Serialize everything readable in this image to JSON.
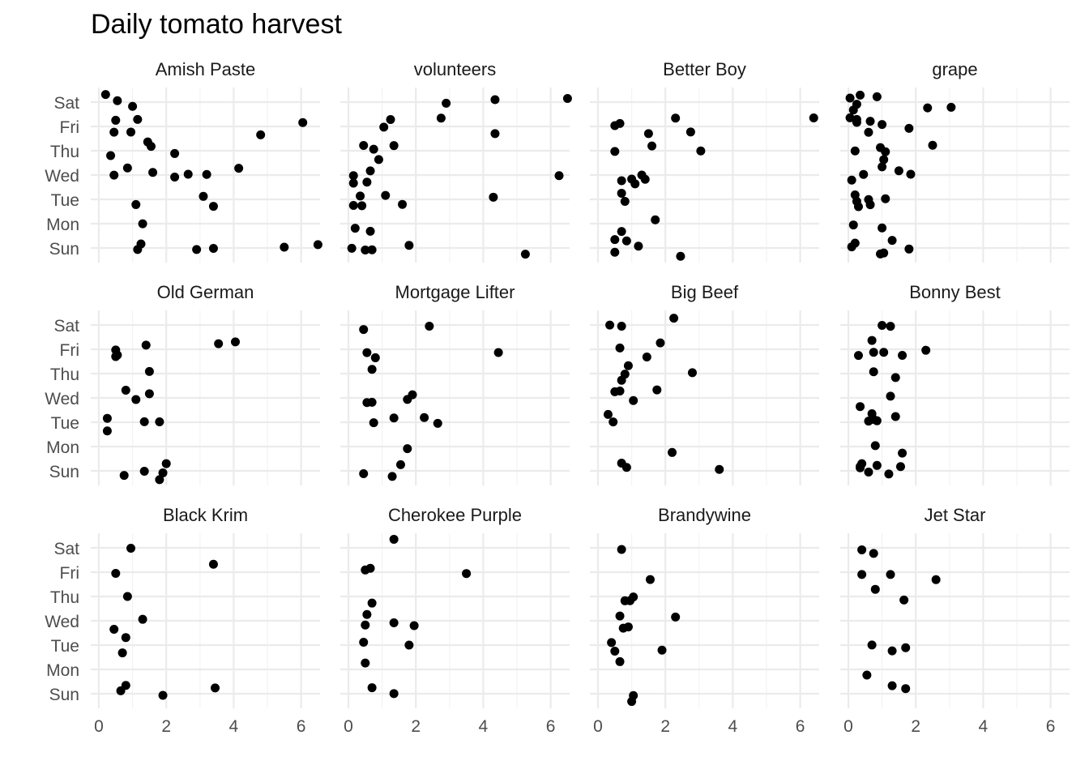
{
  "chart_data": {
    "type": "scatter",
    "title": "Daily tomato harvest",
    "xlabel": "",
    "ylabel": "",
    "xlim": [
      0,
      6.8
    ],
    "x_ticks": [
      0,
      2,
      4,
      6
    ],
    "y_categories": [
      "Sun",
      "Mon",
      "Tue",
      "Wed",
      "Thu",
      "Fri",
      "Sat"
    ],
    "grid": true,
    "point_color": "#000000",
    "grid_color": "#ebebeb",
    "facets": [
      {
        "name": "Amish Paste",
        "points": [
          {
            "x": 1.0,
            "y": "Sat"
          },
          {
            "x": 0.2,
            "y": "Sat"
          },
          {
            "x": 0.55,
            "y": "Sat"
          },
          {
            "x": 0.45,
            "y": "Fri"
          },
          {
            "x": 0.5,
            "y": "Fri"
          },
          {
            "x": 0.95,
            "y": "Fri"
          },
          {
            "x": 1.15,
            "y": "Fri"
          },
          {
            "x": 4.8,
            "y": "Fri"
          },
          {
            "x": 6.05,
            "y": "Fri"
          },
          {
            "x": 0.35,
            "y": "Thu"
          },
          {
            "x": 1.45,
            "y": "Thu"
          },
          {
            "x": 1.55,
            "y": "Thu"
          },
          {
            "x": 2.25,
            "y": "Thu"
          },
          {
            "x": 0.45,
            "y": "Wed"
          },
          {
            "x": 0.85,
            "y": "Wed"
          },
          {
            "x": 1.6,
            "y": "Wed"
          },
          {
            "x": 2.25,
            "y": "Wed"
          },
          {
            "x": 2.65,
            "y": "Wed"
          },
          {
            "x": 3.2,
            "y": "Wed"
          },
          {
            "x": 4.15,
            "y": "Wed"
          },
          {
            "x": 1.1,
            "y": "Tue"
          },
          {
            "x": 3.4,
            "y": "Tue"
          },
          {
            "x": 3.1,
            "y": "Tue"
          },
          {
            "x": 1.3,
            "y": "Mon"
          },
          {
            "x": 1.15,
            "y": "Sun"
          },
          {
            "x": 1.25,
            "y": "Sun"
          },
          {
            "x": 2.9,
            "y": "Sun"
          },
          {
            "x": 3.4,
            "y": "Sun"
          },
          {
            "x": 5.5,
            "y": "Sun"
          },
          {
            "x": 6.5,
            "y": "Sun"
          }
        ]
      },
      {
        "name": "volunteers",
        "points": [
          {
            "x": 2.9,
            "y": "Sat"
          },
          {
            "x": 4.35,
            "y": "Sat"
          },
          {
            "x": 6.5,
            "y": "Sat"
          },
          {
            "x": 1.05,
            "y": "Fri"
          },
          {
            "x": 1.25,
            "y": "Fri"
          },
          {
            "x": 2.75,
            "y": "Fri"
          },
          {
            "x": 4.35,
            "y": "Fri"
          },
          {
            "x": 0.45,
            "y": "Thu"
          },
          {
            "x": 0.75,
            "y": "Thu"
          },
          {
            "x": 0.9,
            "y": "Thu"
          },
          {
            "x": 1.35,
            "y": "Thu"
          },
          {
            "x": 0.15,
            "y": "Wed"
          },
          {
            "x": 0.15,
            "y": "Wed"
          },
          {
            "x": 0.55,
            "y": "Wed"
          },
          {
            "x": 0.65,
            "y": "Wed"
          },
          {
            "x": 6.25,
            "y": "Wed"
          },
          {
            "x": 0.15,
            "y": "Tue"
          },
          {
            "x": 0.35,
            "y": "Tue"
          },
          {
            "x": 0.4,
            "y": "Tue"
          },
          {
            "x": 1.1,
            "y": "Tue"
          },
          {
            "x": 1.6,
            "y": "Tue"
          },
          {
            "x": 4.3,
            "y": "Tue"
          },
          {
            "x": 0.2,
            "y": "Mon"
          },
          {
            "x": 0.65,
            "y": "Mon"
          },
          {
            "x": 0.1,
            "y": "Sun"
          },
          {
            "x": 0.5,
            "y": "Sun"
          },
          {
            "x": 1.8,
            "y": "Sun"
          },
          {
            "x": 5.25,
            "y": "Sun"
          },
          {
            "x": 0.7,
            "y": "Sun"
          }
        ]
      },
      {
        "name": "Better Boy",
        "points": [
          {
            "x": 0.5,
            "y": "Fri"
          },
          {
            "x": 0.65,
            "y": "Fri"
          },
          {
            "x": 1.5,
            "y": "Fri"
          },
          {
            "x": 2.3,
            "y": "Fri"
          },
          {
            "x": 2.75,
            "y": "Fri"
          },
          {
            "x": 6.4,
            "y": "Fri"
          },
          {
            "x": 0.5,
            "y": "Thu"
          },
          {
            "x": 1.6,
            "y": "Thu"
          },
          {
            "x": 3.05,
            "y": "Thu"
          },
          {
            "x": 0.7,
            "y": "Wed"
          },
          {
            "x": 1.0,
            "y": "Wed"
          },
          {
            "x": 1.1,
            "y": "Wed"
          },
          {
            "x": 1.3,
            "y": "Wed"
          },
          {
            "x": 1.4,
            "y": "Wed"
          },
          {
            "x": 0.7,
            "y": "Tue"
          },
          {
            "x": 0.8,
            "y": "Tue"
          },
          {
            "x": 0.7,
            "y": "Mon"
          },
          {
            "x": 1.7,
            "y": "Mon"
          },
          {
            "x": 0.5,
            "y": "Sun"
          },
          {
            "x": 0.5,
            "y": "Sun"
          },
          {
            "x": 0.85,
            "y": "Sun"
          },
          {
            "x": 1.2,
            "y": "Sun"
          },
          {
            "x": 2.45,
            "y": "Sun"
          }
        ]
      },
      {
        "name": "grape",
        "points": [
          {
            "x": 0.05,
            "y": "Sat"
          },
          {
            "x": 0.15,
            "y": "Sat"
          },
          {
            "x": 0.25,
            "y": "Sat"
          },
          {
            "x": 0.35,
            "y": "Sat"
          },
          {
            "x": 0.85,
            "y": "Sat"
          },
          {
            "x": 2.35,
            "y": "Sat"
          },
          {
            "x": 3.05,
            "y": "Sat"
          },
          {
            "x": 0.05,
            "y": "Fri"
          },
          {
            "x": 0.25,
            "y": "Fri"
          },
          {
            "x": 0.25,
            "y": "Fri"
          },
          {
            "x": 0.6,
            "y": "Fri"
          },
          {
            "x": 0.65,
            "y": "Fri"
          },
          {
            "x": 1.0,
            "y": "Fri"
          },
          {
            "x": 1.8,
            "y": "Fri"
          },
          {
            "x": 0.2,
            "y": "Thu"
          },
          {
            "x": 0.95,
            "y": "Thu"
          },
          {
            "x": 1.05,
            "y": "Thu"
          },
          {
            "x": 1.1,
            "y": "Thu"
          },
          {
            "x": 2.5,
            "y": "Thu"
          },
          {
            "x": 0.1,
            "y": "Wed"
          },
          {
            "x": 0.45,
            "y": "Wed"
          },
          {
            "x": 1.0,
            "y": "Wed"
          },
          {
            "x": 1.5,
            "y": "Wed"
          },
          {
            "x": 1.85,
            "y": "Wed"
          },
          {
            "x": 0.2,
            "y": "Tue"
          },
          {
            "x": 0.3,
            "y": "Tue"
          },
          {
            "x": 0.25,
            "y": "Tue"
          },
          {
            "x": 0.6,
            "y": "Tue"
          },
          {
            "x": 0.65,
            "y": "Tue"
          },
          {
            "x": 1.1,
            "y": "Tue"
          },
          {
            "x": 0.15,
            "y": "Mon"
          },
          {
            "x": 1.0,
            "y": "Mon"
          },
          {
            "x": 0.1,
            "y": "Sun"
          },
          {
            "x": 0.2,
            "y": "Sun"
          },
          {
            "x": 0.95,
            "y": "Sun"
          },
          {
            "x": 1.05,
            "y": "Sun"
          },
          {
            "x": 1.3,
            "y": "Sun"
          },
          {
            "x": 1.8,
            "y": "Sun"
          }
        ]
      },
      {
        "name": "Old German",
        "points": [
          {
            "x": 0.55,
            "y": "Fri"
          },
          {
            "x": 0.5,
            "y": "Fri"
          },
          {
            "x": 0.5,
            "y": "Fri"
          },
          {
            "x": 1.4,
            "y": "Fri"
          },
          {
            "x": 3.55,
            "y": "Fri"
          },
          {
            "x": 4.05,
            "y": "Fri"
          },
          {
            "x": 1.5,
            "y": "Thu"
          },
          {
            "x": 0.8,
            "y": "Wed"
          },
          {
            "x": 1.1,
            "y": "Wed"
          },
          {
            "x": 1.5,
            "y": "Wed"
          },
          {
            "x": 0.25,
            "y": "Tue"
          },
          {
            "x": 0.25,
            "y": "Tue"
          },
          {
            "x": 1.35,
            "y": "Tue"
          },
          {
            "x": 1.8,
            "y": "Tue"
          },
          {
            "x": 0.75,
            "y": "Sun"
          },
          {
            "x": 1.35,
            "y": "Sun"
          },
          {
            "x": 1.8,
            "y": "Sun"
          },
          {
            "x": 1.9,
            "y": "Sun"
          },
          {
            "x": 2.0,
            "y": "Sun"
          }
        ]
      },
      {
        "name": "Mortgage Lifter",
        "points": [
          {
            "x": 0.45,
            "y": "Sat"
          },
          {
            "x": 2.4,
            "y": "Sat"
          },
          {
            "x": 0.55,
            "y": "Fri"
          },
          {
            "x": 0.8,
            "y": "Fri"
          },
          {
            "x": 4.45,
            "y": "Fri"
          },
          {
            "x": 0.7,
            "y": "Thu"
          },
          {
            "x": 0.7,
            "y": "Wed"
          },
          {
            "x": 1.75,
            "y": "Wed"
          },
          {
            "x": 1.9,
            "y": "Wed"
          },
          {
            "x": 0.55,
            "y": "Wed"
          },
          {
            "x": 0.75,
            "y": "Tue"
          },
          {
            "x": 1.35,
            "y": "Tue"
          },
          {
            "x": 2.25,
            "y": "Tue"
          },
          {
            "x": 2.65,
            "y": "Tue"
          },
          {
            "x": 1.75,
            "y": "Mon"
          },
          {
            "x": 0.45,
            "y": "Sun"
          },
          {
            "x": 1.3,
            "y": "Sun"
          },
          {
            "x": 1.55,
            "y": "Sun"
          }
        ]
      },
      {
        "name": "Big Beef",
        "points": [
          {
            "x": 0.35,
            "y": "Sat"
          },
          {
            "x": 0.7,
            "y": "Sat"
          },
          {
            "x": 2.25,
            "y": "Sat"
          },
          {
            "x": 0.65,
            "y": "Fri"
          },
          {
            "x": 1.45,
            "y": "Fri"
          },
          {
            "x": 1.85,
            "y": "Fri"
          },
          {
            "x": 0.9,
            "y": "Thu"
          },
          {
            "x": 0.7,
            "y": "Thu"
          },
          {
            "x": 0.8,
            "y": "Thu"
          },
          {
            "x": 2.8,
            "y": "Thu"
          },
          {
            "x": 1.05,
            "y": "Wed"
          },
          {
            "x": 1.75,
            "y": "Wed"
          },
          {
            "x": 0.65,
            "y": "Wed"
          },
          {
            "x": 0.5,
            "y": "Wed"
          },
          {
            "x": 0.3,
            "y": "Tue"
          },
          {
            "x": 0.45,
            "y": "Tue"
          },
          {
            "x": 2.2,
            "y": "Mon"
          },
          {
            "x": 0.7,
            "y": "Sun"
          },
          {
            "x": 0.85,
            "y": "Sun"
          },
          {
            "x": 3.6,
            "y": "Sun"
          }
        ]
      },
      {
        "name": "Bonny Best",
        "points": [
          {
            "x": 1.0,
            "y": "Sat"
          },
          {
            "x": 1.25,
            "y": "Sat"
          },
          {
            "x": 0.3,
            "y": "Fri"
          },
          {
            "x": 0.7,
            "y": "Fri"
          },
          {
            "x": 0.75,
            "y": "Fri"
          },
          {
            "x": 1.05,
            "y": "Fri"
          },
          {
            "x": 1.6,
            "y": "Fri"
          },
          {
            "x": 2.3,
            "y": "Fri"
          },
          {
            "x": 0.75,
            "y": "Thu"
          },
          {
            "x": 1.4,
            "y": "Thu"
          },
          {
            "x": 0.35,
            "y": "Wed"
          },
          {
            "x": 1.25,
            "y": "Wed"
          },
          {
            "x": 0.6,
            "y": "Tue"
          },
          {
            "x": 0.85,
            "y": "Tue"
          },
          {
            "x": 0.7,
            "y": "Tue"
          },
          {
            "x": 0.75,
            "y": "Tue"
          },
          {
            "x": 1.4,
            "y": "Tue"
          },
          {
            "x": 0.8,
            "y": "Mon"
          },
          {
            "x": 1.6,
            "y": "Mon"
          },
          {
            "x": 0.35,
            "y": "Sun"
          },
          {
            "x": 0.6,
            "y": "Sun"
          },
          {
            "x": 0.85,
            "y": "Sun"
          },
          {
            "x": 1.2,
            "y": "Sun"
          },
          {
            "x": 1.55,
            "y": "Sun"
          },
          {
            "x": 0.35,
            "y": "Sun"
          },
          {
            "x": 0.4,
            "y": "Sun"
          }
        ]
      },
      {
        "name": "Black Krim",
        "points": [
          {
            "x": 0.95,
            "y": "Sat"
          },
          {
            "x": 0.5,
            "y": "Fri"
          },
          {
            "x": 3.4,
            "y": "Fri"
          },
          {
            "x": 0.85,
            "y": "Thu"
          },
          {
            "x": 0.45,
            "y": "Wed"
          },
          {
            "x": 1.3,
            "y": "Wed"
          },
          {
            "x": 0.7,
            "y": "Tue"
          },
          {
            "x": 0.8,
            "y": "Tue"
          },
          {
            "x": 0.65,
            "y": "Sun"
          },
          {
            "x": 0.8,
            "y": "Sun"
          },
          {
            "x": 1.9,
            "y": "Sun"
          },
          {
            "x": 3.45,
            "y": "Sun"
          }
        ]
      },
      {
        "name": "Cherokee Purple",
        "points": [
          {
            "x": 1.35,
            "y": "Sat"
          },
          {
            "x": 0.5,
            "y": "Fri"
          },
          {
            "x": 0.65,
            "y": "Fri"
          },
          {
            "x": 3.5,
            "y": "Fri"
          },
          {
            "x": 0.7,
            "y": "Thu"
          },
          {
            "x": 0.5,
            "y": "Wed"
          },
          {
            "x": 0.55,
            "y": "Wed"
          },
          {
            "x": 1.35,
            "y": "Wed"
          },
          {
            "x": 1.95,
            "y": "Wed"
          },
          {
            "x": 0.45,
            "y": "Tue"
          },
          {
            "x": 1.8,
            "y": "Tue"
          },
          {
            "x": 0.5,
            "y": "Mon"
          },
          {
            "x": 0.7,
            "y": "Sun"
          },
          {
            "x": 1.35,
            "y": "Sun"
          }
        ]
      },
      {
        "name": "Brandywine",
        "points": [
          {
            "x": 0.7,
            "y": "Sat"
          },
          {
            "x": 1.55,
            "y": "Fri"
          },
          {
            "x": 0.8,
            "y": "Thu"
          },
          {
            "x": 0.95,
            "y": "Thu"
          },
          {
            "x": 1.05,
            "y": "Thu"
          },
          {
            "x": 0.9,
            "y": "Wed"
          },
          {
            "x": 0.75,
            "y": "Wed"
          },
          {
            "x": 0.65,
            "y": "Wed"
          },
          {
            "x": 2.3,
            "y": "Wed"
          },
          {
            "x": 0.5,
            "y": "Tue"
          },
          {
            "x": 0.4,
            "y": "Tue"
          },
          {
            "x": 1.9,
            "y": "Tue"
          },
          {
            "x": 0.65,
            "y": "Mon"
          },
          {
            "x": 1.0,
            "y": "Sun"
          },
          {
            "x": 1.05,
            "y": "Sun"
          }
        ]
      },
      {
        "name": "Jet Star",
        "points": [
          {
            "x": 0.4,
            "y": "Sat"
          },
          {
            "x": 0.75,
            "y": "Sat"
          },
          {
            "x": 0.4,
            "y": "Fri"
          },
          {
            "x": 1.25,
            "y": "Fri"
          },
          {
            "x": 2.6,
            "y": "Fri"
          },
          {
            "x": 1.65,
            "y": "Thu"
          },
          {
            "x": 0.8,
            "y": "Thu"
          },
          {
            "x": 0.7,
            "y": "Tue"
          },
          {
            "x": 1.3,
            "y": "Tue"
          },
          {
            "x": 1.7,
            "y": "Tue"
          },
          {
            "x": 0.55,
            "y": "Mon"
          },
          {
            "x": 1.3,
            "y": "Sun"
          },
          {
            "x": 1.7,
            "y": "Sun"
          }
        ]
      }
    ]
  }
}
